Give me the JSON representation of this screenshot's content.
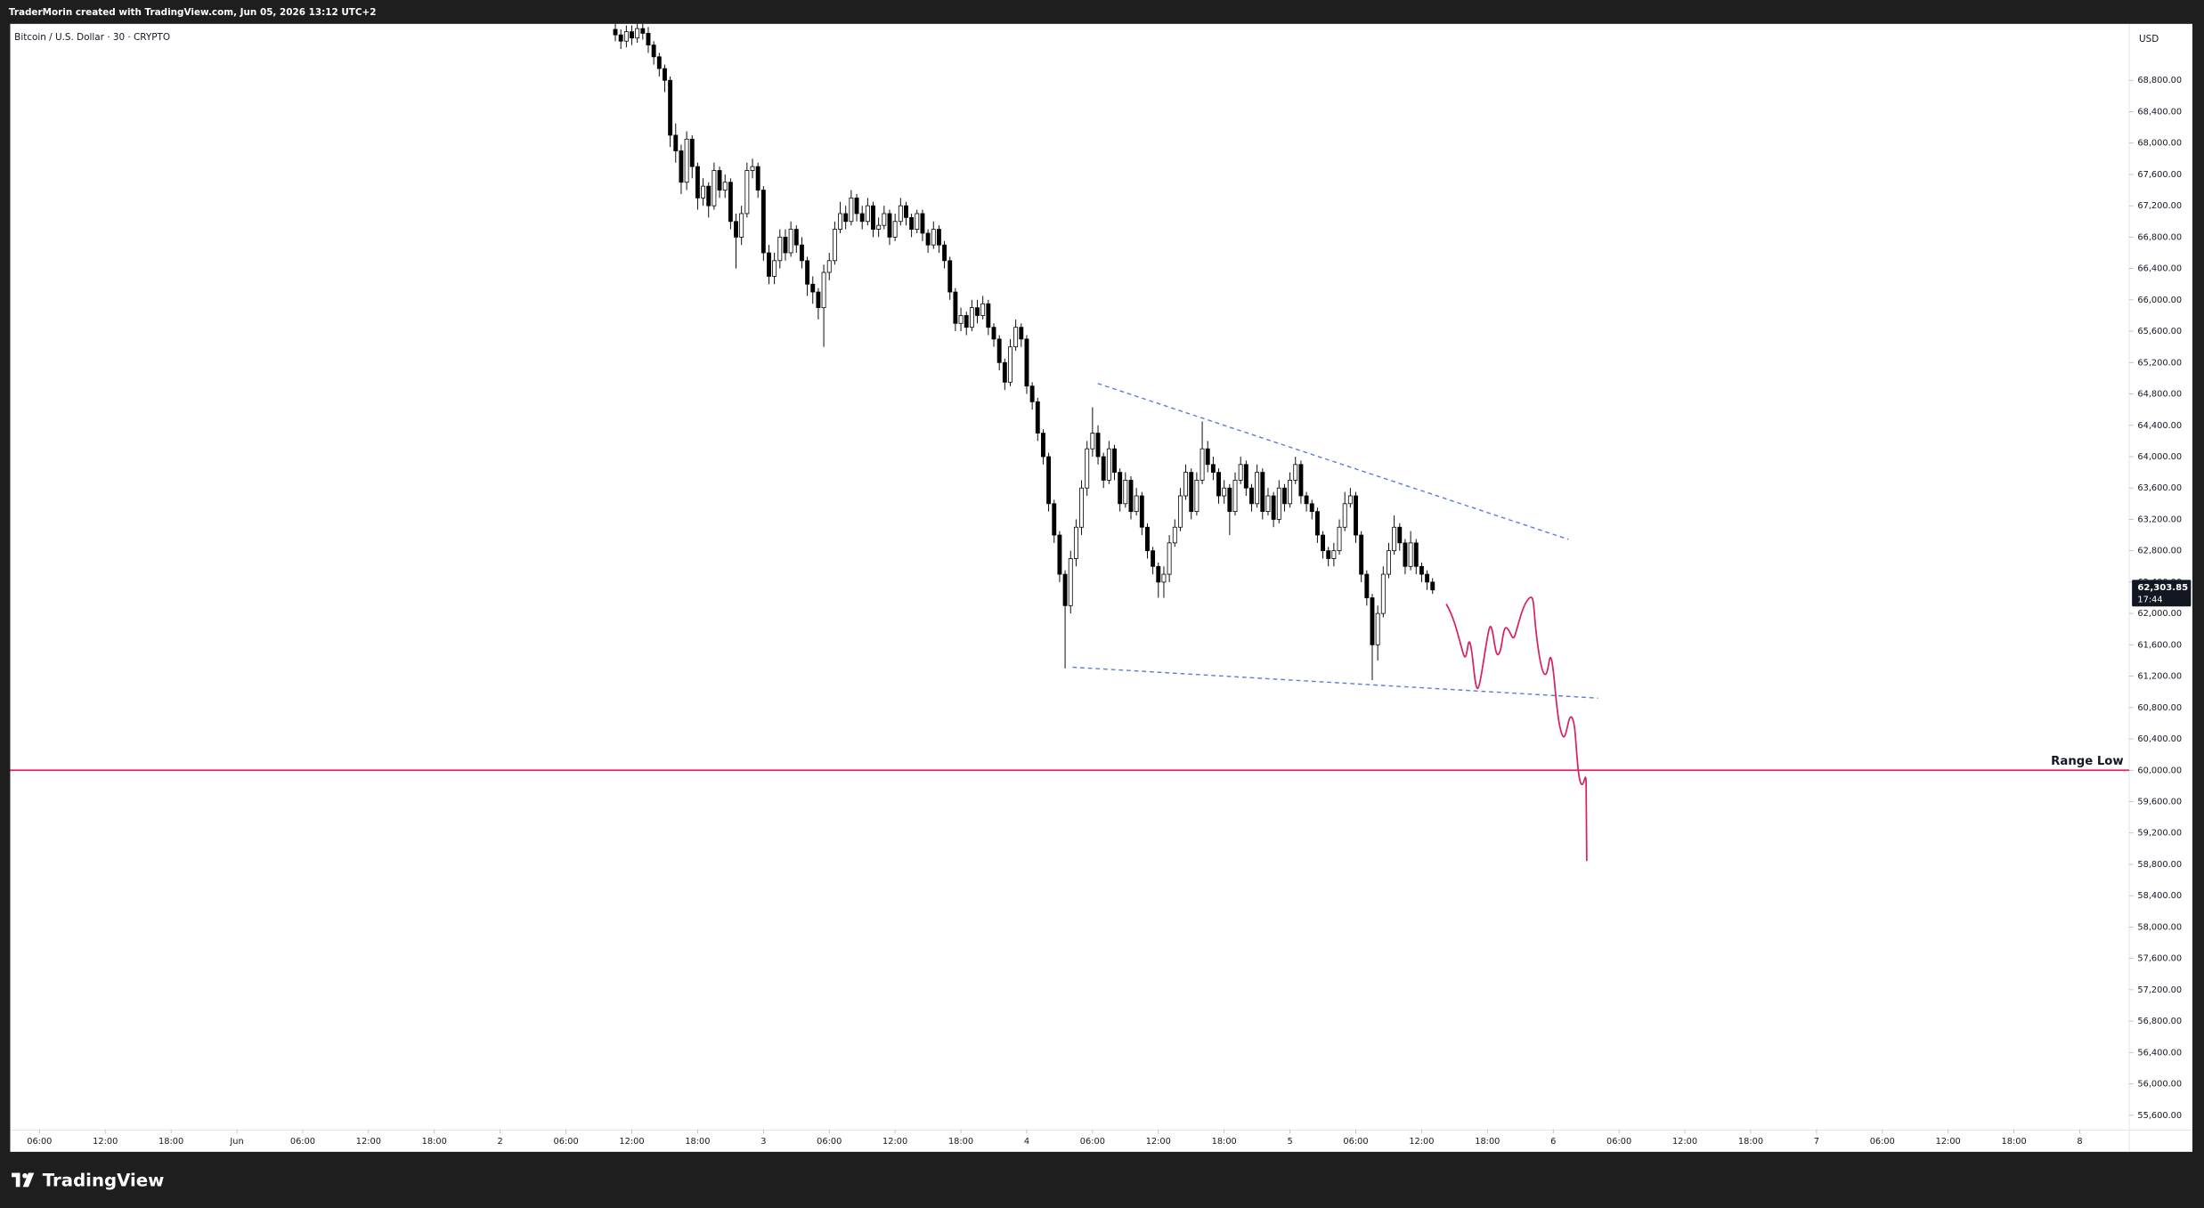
{
  "header": {
    "credit": "TraderMorin created with TradingView.com, Jun 05, 2026 13:12 UTC+2",
    "symbol": "Bitcoin / U.S. Dollar · 30 · CRYPTO",
    "currency": "USD"
  },
  "footer": {
    "brand": "TradingView"
  },
  "chart_data": {
    "type": "candlestick",
    "x": [
      "Jun 2 10:30",
      "Jun 2 11:00",
      "Jun 2 11:30",
      "Jun 2 12:00",
      "Jun 2 12:30",
      "Jun 2 13:00",
      "Jun 2 13:30",
      "Jun 2 14:00",
      "Jun 2 14:30",
      "Jun 2 15:00",
      "Jun 2 15:30",
      "Jun 2 16:00",
      "Jun 2 16:30",
      "Jun 2 17:00",
      "Jun 2 17:30",
      "Jun 2 18:00",
      "Jun 2 18:30",
      "Jun 2 19:00",
      "Jun 2 19:30",
      "Jun 2 20:00",
      "Jun 2 20:30",
      "Jun 2 21:00",
      "Jun 2 21:30",
      "Jun 2 22:00",
      "Jun 2 22:30",
      "Jun 2 23:00",
      "Jun 2 23:30",
      "Jun 3 00:00",
      "Jun 3 00:30",
      "Jun 3 01:00",
      "Jun 3 01:30",
      "Jun 3 02:00",
      "Jun 3 02:30",
      "Jun 3 03:00",
      "Jun 3 03:30",
      "Jun 3 04:00",
      "Jun 3 04:30",
      "Jun 3 05:00",
      "Jun 3 05:30",
      "Jun 3 06:00",
      "Jun 3 06:30",
      "Jun 3 07:00",
      "Jun 3 07:30",
      "Jun 3 08:00",
      "Jun 3 08:30",
      "Jun 3 09:00",
      "Jun 3 09:30",
      "Jun 3 10:00",
      "Jun 3 10:30",
      "Jun 3 11:00",
      "Jun 3 11:30",
      "Jun 3 12:00",
      "Jun 3 12:30",
      "Jun 3 13:00",
      "Jun 3 13:30",
      "Jun 3 14:00",
      "Jun 3 14:30",
      "Jun 3 15:00",
      "Jun 3 15:30",
      "Jun 3 16:00",
      "Jun 3 16:30",
      "Jun 3 17:00",
      "Jun 3 17:30",
      "Jun 3 18:00",
      "Jun 3 18:30",
      "Jun 3 19:00",
      "Jun 3 19:30",
      "Jun 3 20:00",
      "Jun 3 20:30",
      "Jun 3 21:00",
      "Jun 3 21:30",
      "Jun 3 22:00",
      "Jun 3 22:30",
      "Jun 3 23:00",
      "Jun 3 23:30",
      "Jun 4 00:00",
      "Jun 4 00:30",
      "Jun 4 01:00",
      "Jun 4 01:30",
      "Jun 4 02:00",
      "Jun 4 02:30",
      "Jun 4 03:00",
      "Jun 4 03:30",
      "Jun 4 04:00",
      "Jun 4 04:30",
      "Jun 4 05:00",
      "Jun 4 05:30",
      "Jun 4 06:00",
      "Jun 4 06:30",
      "Jun 4 07:00",
      "Jun 4 07:30",
      "Jun 4 08:00",
      "Jun 4 08:30",
      "Jun 4 09:00",
      "Jun 4 09:30",
      "Jun 4 10:00",
      "Jun 4 10:30",
      "Jun 4 11:00",
      "Jun 4 11:30",
      "Jun 4 12:00",
      "Jun 4 12:30",
      "Jun 4 13:00",
      "Jun 4 13:30",
      "Jun 4 14:00",
      "Jun 4 14:30",
      "Jun 4 15:00",
      "Jun 4 15:30",
      "Jun 4 16:00",
      "Jun 4 16:30",
      "Jun 4 17:00",
      "Jun 4 17:30",
      "Jun 4 18:00",
      "Jun 4 18:30",
      "Jun 4 19:00",
      "Jun 4 19:30",
      "Jun 4 20:00",
      "Jun 4 20:30",
      "Jun 4 21:00",
      "Jun 4 21:30",
      "Jun 4 22:00",
      "Jun 4 22:30",
      "Jun 4 23:00",
      "Jun 4 23:30",
      "Jun 5 00:00",
      "Jun 5 00:30",
      "Jun 5 01:00",
      "Jun 5 01:30",
      "Jun 5 02:00",
      "Jun 5 02:30",
      "Jun 5 03:00",
      "Jun 5 03:30",
      "Jun 5 04:00",
      "Jun 5 04:30",
      "Jun 5 05:00",
      "Jun 5 05:30",
      "Jun 5 06:00",
      "Jun 5 06:30",
      "Jun 5 07:00",
      "Jun 5 07:30",
      "Jun 5 08:00",
      "Jun 5 08:30",
      "Jun 5 09:00",
      "Jun 5 09:30",
      "Jun 5 10:00",
      "Jun 5 10:30",
      "Jun 5 11:00",
      "Jun 5 11:30",
      "Jun 5 12:00",
      "Jun 5 12:30",
      "Jun 5 13:00"
    ],
    "open": [
      69450,
      69380,
      69300,
      69420,
      69340,
      69460,
      69400,
      69250,
      69100,
      68950,
      68800,
      68100,
      67900,
      67500,
      68050,
      67700,
      67300,
      67450,
      67200,
      67650,
      67400,
      67500,
      67000,
      66800,
      67100,
      67650,
      67700,
      67400,
      66600,
      66300,
      66500,
      66800,
      66600,
      66900,
      66700,
      66500,
      66200,
      66100,
      65900,
      66350,
      66500,
      66900,
      67100,
      67000,
      67300,
      67100,
      67000,
      67200,
      66900,
      66950,
      67100,
      66800,
      67000,
      67200,
      67050,
      66900,
      67100,
      66850,
      66700,
      66900,
      66700,
      66500,
      66100,
      65700,
      65800,
      65650,
      65900,
      65800,
      65950,
      65650,
      65500,
      65200,
      64950,
      65400,
      65650,
      65500,
      64900,
      64700,
      64300,
      64000,
      63400,
      63000,
      62500,
      62100,
      62700,
      63100,
      63600,
      64100,
      64300,
      64000,
      63700,
      64100,
      63800,
      63400,
      63700,
      63300,
      63500,
      63100,
      62800,
      62600,
      62400,
      62500,
      62900,
      63100,
      63500,
      63800,
      63300,
      63700,
      64100,
      63900,
      63800,
      63500,
      63600,
      63300,
      63700,
      63900,
      63600,
      63400,
      63800,
      63300,
      63500,
      63200,
      63600,
      63400,
      63700,
      63900,
      63500,
      63400,
      63300,
      63000,
      62800,
      62700,
      62800,
      63100,
      63400,
      63500,
      63000,
      62500,
      62200,
      61600,
      62000,
      62500,
      62800,
      63100,
      62900,
      62600,
      62900,
      62600,
      62500,
      62400
    ],
    "high": [
      69550,
      69450,
      69500,
      69500,
      69560,
      69540,
      69480,
      69300,
      69150,
      69000,
      68850,
      68250,
      67980,
      68150,
      68100,
      67750,
      67550,
      67500,
      67750,
      67700,
      67600,
      67550,
      67100,
      67200,
      67750,
      67800,
      67750,
      67450,
      66700,
      66600,
      66900,
      66900,
      67000,
      66950,
      66800,
      66550,
      66300,
      66150,
      66450,
      66600,
      67000,
      67250,
      67200,
      67400,
      67350,
      67200,
      67300,
      67250,
      67050,
      67200,
      67150,
      67100,
      67300,
      67250,
      67100,
      67150,
      67150,
      66900,
      67000,
      66950,
      66750,
      66550,
      66150,
      65900,
      65850,
      66000,
      66000,
      66050,
      66000,
      65700,
      65550,
      65250,
      65500,
      65750,
      65700,
      65550,
      64950,
      64750,
      64350,
      64050,
      63450,
      63050,
      62550,
      62800,
      63200,
      63700,
      64200,
      64630,
      64400,
      64050,
      64200,
      64150,
      63850,
      63800,
      63750,
      63600,
      63550,
      63150,
      62850,
      62650,
      62600,
      63000,
      63200,
      63600,
      63900,
      63850,
      63800,
      64450,
      64200,
      64000,
      63850,
      63700,
      63650,
      63800,
      64000,
      63950,
      63650,
      63900,
      63850,
      63600,
      63550,
      63700,
      63650,
      63800,
      64000,
      63950,
      63550,
      63450,
      63350,
      63050,
      62850,
      62900,
      63200,
      63550,
      63600,
      63550,
      63050,
      62550,
      62250,
      62100,
      62600,
      62900,
      63250,
      63150,
      62950,
      63050,
      62950,
      62650,
      62550,
      62450
    ],
    "low": [
      69300,
      69200,
      69220,
      69250,
      69280,
      69320,
      69150,
      69000,
      68850,
      68650,
      67950,
      67750,
      67350,
      67400,
      67550,
      67150,
      67200,
      67050,
      67150,
      67300,
      67300,
      66900,
      66400,
      66700,
      67050,
      67550,
      67300,
      66500,
      66200,
      66200,
      66400,
      66500,
      66550,
      66600,
      66400,
      66050,
      65950,
      65750,
      65400,
      66250,
      66450,
      66850,
      66900,
      66950,
      67000,
      66900,
      66950,
      66800,
      66800,
      66900,
      66700,
      66750,
      66950,
      66950,
      66800,
      66850,
      66750,
      66600,
      66650,
      66600,
      66400,
      66000,
      65600,
      65600,
      65550,
      65600,
      65700,
      65750,
      65550,
      65400,
      65100,
      64850,
      64900,
      65350,
      65400,
      64800,
      64600,
      64200,
      63900,
      63300,
      62900,
      62400,
      61300,
      62000,
      62600,
      63000,
      63500,
      64000,
      63900,
      63600,
      63650,
      63700,
      63300,
      63350,
      63200,
      63250,
      63000,
      62700,
      62500,
      62200,
      62200,
      62400,
      62850,
      63050,
      63450,
      63200,
      63250,
      63650,
      63800,
      63700,
      63400,
      63400,
      63000,
      63250,
      63650,
      63500,
      63300,
      63350,
      63200,
      63250,
      63100,
      63150,
      63300,
      63350,
      63650,
      63400,
      63300,
      63200,
      62900,
      62700,
      62600,
      62600,
      62750,
      63050,
      63350,
      62900,
      62400,
      62100,
      61150,
      61400,
      61950,
      62450,
      62750,
      62800,
      62500,
      62550,
      62500,
      62400,
      62300,
      62250
    ],
    "close": [
      69380,
      69300,
      69420,
      69340,
      69460,
      69400,
      69250,
      69100,
      68950,
      68800,
      68100,
      67900,
      67500,
      68050,
      67700,
      67300,
      67450,
      67200,
      67650,
      67400,
      67500,
      67000,
      66800,
      67100,
      67650,
      67700,
      67400,
      66600,
      66300,
      66500,
      66800,
      66600,
      66900,
      66700,
      66500,
      66200,
      66100,
      65900,
      66350,
      66500,
      66900,
      67100,
      67000,
      67300,
      67100,
      67000,
      67200,
      66900,
      66950,
      67100,
      66800,
      67000,
      67200,
      67050,
      66900,
      67100,
      66850,
      66700,
      66900,
      66700,
      66500,
      66100,
      65700,
      65800,
      65650,
      65900,
      65800,
      65950,
      65650,
      65500,
      65200,
      64950,
      65400,
      65650,
      65500,
      64900,
      64700,
      64300,
      64000,
      63400,
      63000,
      62500,
      62100,
      62700,
      63100,
      63600,
      64100,
      64300,
      64000,
      63700,
      64100,
      63800,
      63400,
      63700,
      63300,
      63500,
      63100,
      62800,
      62600,
      62400,
      62500,
      62900,
      63100,
      63500,
      63800,
      63300,
      63700,
      64100,
      63900,
      63800,
      63500,
      63600,
      63300,
      63700,
      63900,
      63600,
      63400,
      63800,
      63300,
      63500,
      63200,
      63600,
      63400,
      63700,
      63900,
      63500,
      63400,
      63300,
      63000,
      62800,
      62700,
      62800,
      63100,
      63400,
      63500,
      63000,
      62500,
      62200,
      61600,
      62000,
      62500,
      62800,
      63100,
      62900,
      62600,
      62900,
      62600,
      62500,
      62400,
      62300
    ],
    "up_color": "#ffffff",
    "down_color": "#000000",
    "xlim": [
      "May 31 03:20",
      "Jun 8 04:30"
    ],
    "xticks": [
      {
        "value": "May 31 06:00",
        "label": "06:00"
      },
      {
        "value": "May 31 12:00",
        "label": "12:00"
      },
      {
        "value": "May 31 18:00",
        "label": "18:00"
      },
      {
        "value": "Jun 1 00:00",
        "label": "Jun"
      },
      {
        "value": "Jun 1 06:00",
        "label": "06:00"
      },
      {
        "value": "Jun 1 12:00",
        "label": "12:00"
      },
      {
        "value": "Jun 1 18:00",
        "label": "18:00"
      },
      {
        "value": "Jun 2 00:00",
        "label": "2"
      },
      {
        "value": "Jun 2 06:00",
        "label": "06:00"
      },
      {
        "value": "Jun 2 12:00",
        "label": "12:00"
      },
      {
        "value": "Jun 2 18:00",
        "label": "18:00"
      },
      {
        "value": "Jun 3 00:00",
        "label": "3"
      },
      {
        "value": "Jun 3 06:00",
        "label": "06:00"
      },
      {
        "value": "Jun 3 12:00",
        "label": "12:00"
      },
      {
        "value": "Jun 3 18:00",
        "label": "18:00"
      },
      {
        "value": "Jun 4 00:00",
        "label": "4"
      },
      {
        "value": "Jun 4 06:00",
        "label": "06:00"
      },
      {
        "value": "Jun 4 12:00",
        "label": "12:00"
      },
      {
        "value": "Jun 4 18:00",
        "label": "18:00"
      },
      {
        "value": "Jun 5 00:00",
        "label": "5"
      },
      {
        "value": "Jun 5 06:00",
        "label": "06:00"
      },
      {
        "value": "Jun 5 12:00",
        "label": "12:00"
      },
      {
        "value": "Jun 5 18:00",
        "label": "18:00"
      },
      {
        "value": "Jun 6 00:00",
        "label": "6"
      },
      {
        "value": "Jun 6 06:00",
        "label": "06:00"
      },
      {
        "value": "Jun 6 12:00",
        "label": "12:00"
      },
      {
        "value": "Jun 6 18:00",
        "label": "18:00"
      },
      {
        "value": "Jun 7 00:00",
        "label": "7"
      },
      {
        "value": "Jun 7 06:00",
        "label": "06:00"
      },
      {
        "value": "Jun 7 12:00",
        "label": "12:00"
      },
      {
        "value": "Jun 7 18:00",
        "label": "18:00"
      },
      {
        "value": "Jun 8 00:00",
        "label": "8"
      }
    ],
    "ylim": [
      55420,
      69520
    ],
    "yticks": [
      {
        "value": 55600,
        "label": "55,600.00"
      },
      {
        "value": 56000,
        "label": "56,000.00"
      },
      {
        "value": 56400,
        "label": "56,400.00"
      },
      {
        "value": 56800,
        "label": "56,800.00"
      },
      {
        "value": 57200,
        "label": "57,200.00"
      },
      {
        "value": 57600,
        "label": "57,600.00"
      },
      {
        "value": 58000,
        "label": "58,000.00"
      },
      {
        "value": 58400,
        "label": "58,400.00"
      },
      {
        "value": 58800,
        "label": "58,800.00"
      },
      {
        "value": 59200,
        "label": "59,200.00"
      },
      {
        "value": 59600,
        "label": "59,600.00"
      },
      {
        "value": 60000,
        "label": "60,000.00"
      },
      {
        "value": 60400,
        "label": "60,400.00"
      },
      {
        "value": 60800,
        "label": "60,800.00"
      },
      {
        "value": 61200,
        "label": "61,200.00"
      },
      {
        "value": 61600,
        "label": "61,600.00"
      },
      {
        "value": 62000,
        "label": "62,000.00"
      },
      {
        "value": 62400,
        "label": "62,400.00"
      },
      {
        "value": 62800,
        "label": "62,800.00"
      },
      {
        "value": 63200,
        "label": "63,200.00"
      },
      {
        "value": 63600,
        "label": "63,600.00"
      },
      {
        "value": 64000,
        "label": "64,000.00"
      },
      {
        "value": 64400,
        "label": "64,400.00"
      },
      {
        "value": 64800,
        "label": "64,800.00"
      },
      {
        "value": 65200,
        "label": "65,200.00"
      },
      {
        "value": 65600,
        "label": "65,600.00"
      },
      {
        "value": 66000,
        "label": "66,000.00"
      },
      {
        "value": 66400,
        "label": "66,400.00"
      },
      {
        "value": 66800,
        "label": "66,800.00"
      },
      {
        "value": 67200,
        "label": "67,200.00"
      },
      {
        "value": 67600,
        "label": "67,600.00"
      },
      {
        "value": 68000,
        "label": "68,000.00"
      },
      {
        "value": 68400,
        "label": "68,400.00"
      },
      {
        "value": 68800,
        "label": "68,800.00"
      }
    ],
    "hlines": [
      {
        "label": "Range Low",
        "value": 60000,
        "color": "#e0245e"
      }
    ],
    "last_price": {
      "value": 62303.85,
      "label": "62,303.85",
      "countdown": "17:44"
    }
  }
}
